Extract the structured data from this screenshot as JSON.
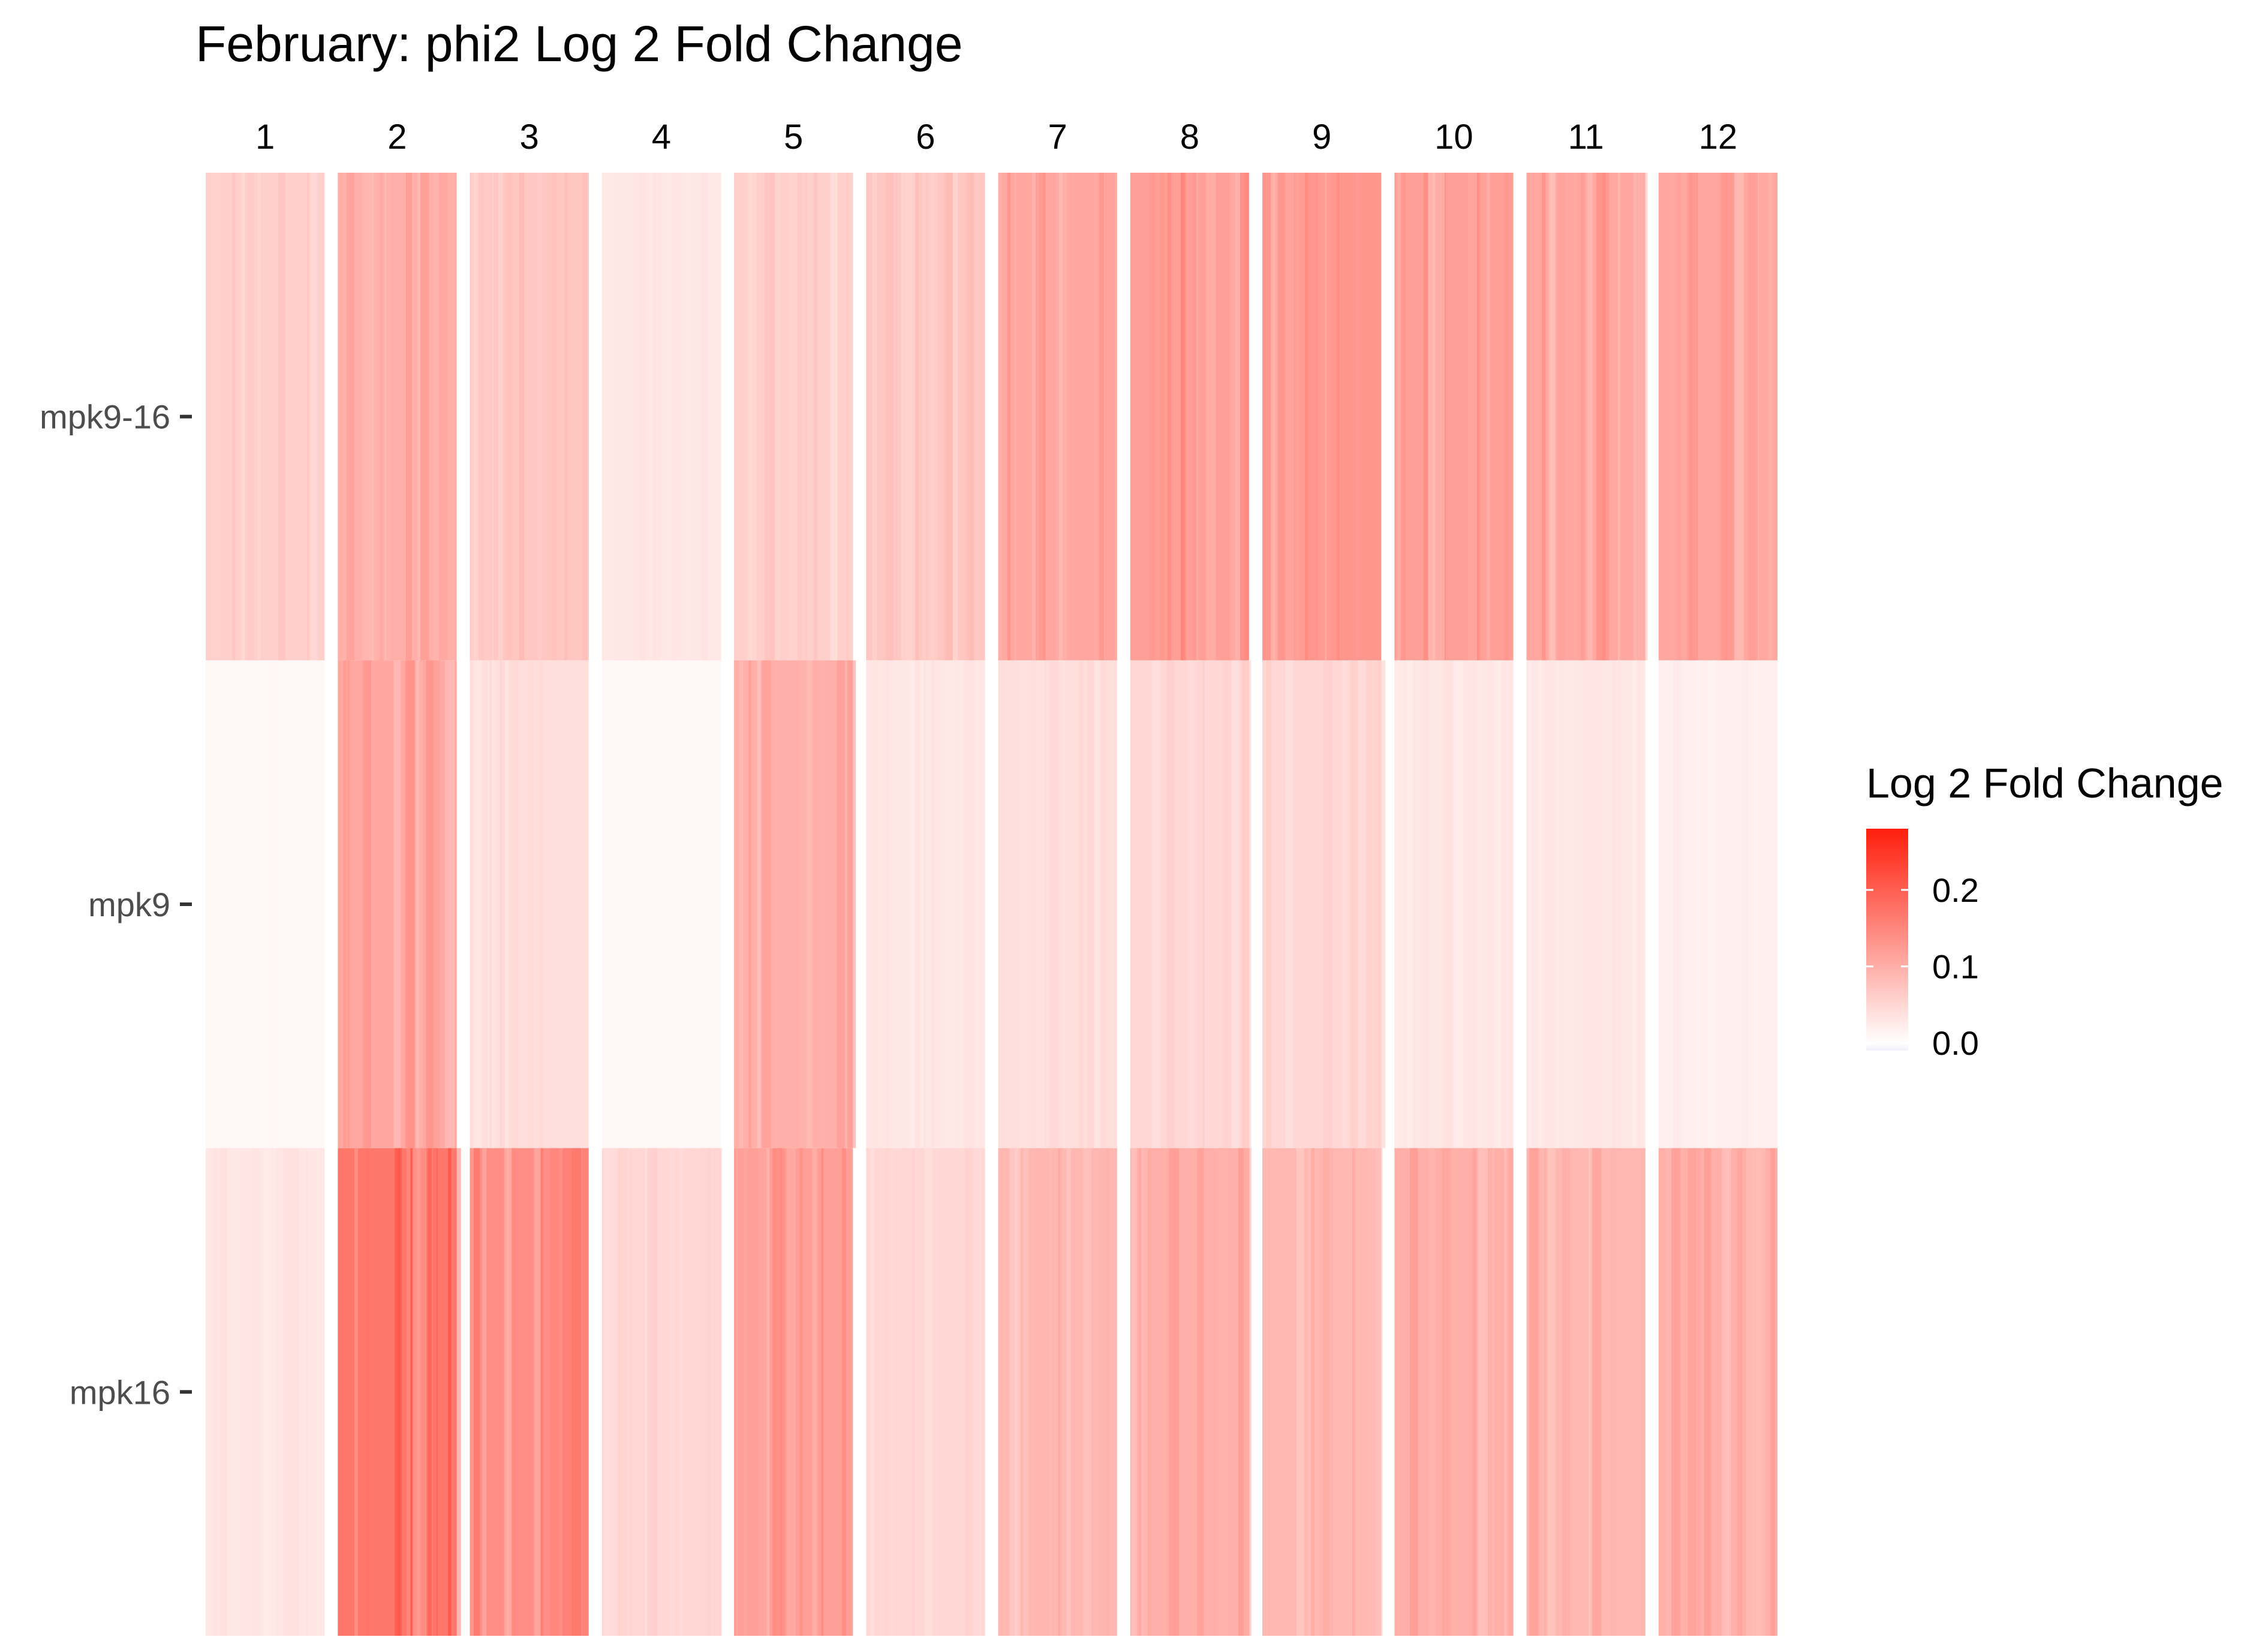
{
  "chart_data": {
    "type": "heatmap",
    "title": "February: phi2 Log 2 Fold Change",
    "xlabel": "",
    "ylabel": "",
    "x_categories": [
      "1",
      "2",
      "3",
      "4",
      "5",
      "6",
      "7",
      "8",
      "9",
      "10",
      "11",
      "12"
    ],
    "y_categories": [
      "mpk9-16",
      "mpk9",
      "mpk16"
    ],
    "x_axis_position": "top",
    "grid": false,
    "legend": {
      "title": "Log 2 Fold Change",
      "position": "right",
      "ticks": [
        "0.2",
        "0.1",
        "0.0"
      ],
      "tick_values": [
        0.2,
        0.1,
        0.0
      ],
      "range": [
        -0.01,
        0.28
      ],
      "colors": {
        "low": "#f2f0fa",
        "mid": "#ffffff",
        "high": "#ff1e0c"
      }
    },
    "cells": [
      {
        "row": "mpk9-16",
        "values": [
          0.06,
          0.1,
          0.07,
          0.03,
          0.06,
          0.07,
          0.11,
          0.12,
          0.13,
          0.12,
          0.11,
          0.11
        ]
      },
      {
        "row": "mpk9",
        "values": [
          0.01,
          0.11,
          0.04,
          0.01,
          0.1,
          0.03,
          0.04,
          0.05,
          0.05,
          0.03,
          0.03,
          0.02
        ]
      },
      {
        "row": "mpk16",
        "values": [
          0.03,
          0.17,
          0.14,
          0.05,
          0.12,
          0.05,
          0.09,
          0.1,
          0.09,
          0.1,
          0.09,
          0.1
        ]
      }
    ]
  }
}
